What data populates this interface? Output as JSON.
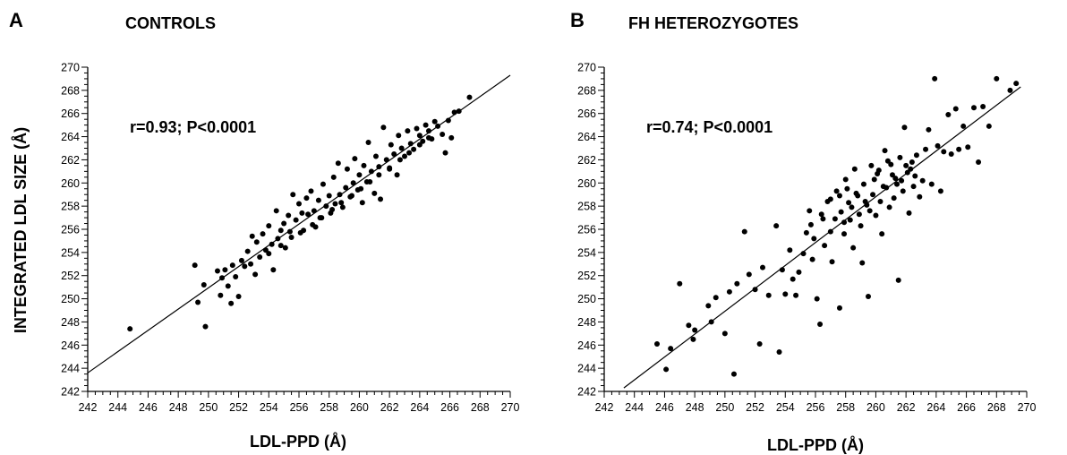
{
  "y_axis_title": "INTEGRATED LDL SIZE (Å)",
  "chart_data": [
    {
      "type": "scatter",
      "panel_label": "A",
      "title": "CONTROLS",
      "xlabel": "LDL-PPD (Å)",
      "ylabel": "INTEGRATED LDL SIZE (Å)",
      "xlim": [
        242,
        270
      ],
      "ylim": [
        242,
        270
      ],
      "x_ticks": [
        242,
        244,
        246,
        248,
        250,
        252,
        254,
        256,
        258,
        260,
        262,
        264,
        266,
        268,
        270
      ],
      "y_ticks": [
        242,
        244,
        246,
        248,
        250,
        252,
        254,
        256,
        258,
        260,
        262,
        264,
        266,
        268,
        270
      ],
      "annotation": "r=0.93; P<0.0001",
      "grid": false,
      "fit_line": {
        "x": [
          242,
          270
        ],
        "y": [
          243.6,
          269.3
        ]
      },
      "points": [
        [
          244.8,
          247.4
        ],
        [
          249.1,
          252.9
        ],
        [
          249.3,
          249.7
        ],
        [
          249.7,
          251.2
        ],
        [
          249.8,
          247.6
        ],
        [
          250.6,
          252.4
        ],
        [
          250.8,
          250.3
        ],
        [
          250.9,
          251.8
        ],
        [
          251.1,
          252.5
        ],
        [
          251.3,
          251.1
        ],
        [
          251.5,
          249.6
        ],
        [
          251.6,
          252.9
        ],
        [
          251.8,
          251.9
        ],
        [
          252.0,
          250.2
        ],
        [
          252.2,
          253.3
        ],
        [
          252.4,
          252.8
        ],
        [
          252.6,
          254.1
        ],
        [
          252.8,
          253.0
        ],
        [
          252.9,
          255.4
        ],
        [
          253.1,
          252.1
        ],
        [
          253.2,
          254.9
        ],
        [
          253.4,
          253.6
        ],
        [
          253.6,
          255.6
        ],
        [
          253.8,
          254.2
        ],
        [
          254.0,
          256.3
        ],
        [
          254.2,
          254.7
        ],
        [
          254.3,
          252.5
        ],
        [
          254.5,
          257.6
        ],
        [
          254.6,
          255.2
        ],
        [
          254.8,
          255.9
        ],
        [
          255.0,
          256.5
        ],
        [
          255.1,
          254.4
        ],
        [
          255.3,
          257.2
        ],
        [
          255.4,
          255.8
        ],
        [
          255.6,
          259.0
        ],
        [
          255.8,
          256.8
        ],
        [
          256.0,
          258.2
        ],
        [
          256.2,
          257.4
        ],
        [
          256.3,
          255.9
        ],
        [
          256.5,
          258.7
        ],
        [
          256.6,
          257.3
        ],
        [
          256.8,
          259.3
        ],
        [
          257.0,
          257.6
        ],
        [
          257.1,
          256.2
        ],
        [
          257.3,
          258.5
        ],
        [
          257.4,
          257.0
        ],
        [
          257.6,
          259.9
        ],
        [
          257.8,
          258.0
        ],
        [
          258.0,
          258.9
        ],
        [
          258.1,
          257.4
        ],
        [
          258.3,
          260.5
        ],
        [
          258.4,
          258.2
        ],
        [
          258.6,
          261.7
        ],
        [
          258.7,
          259.0
        ],
        [
          258.9,
          257.9
        ],
        [
          259.1,
          259.6
        ],
        [
          259.2,
          261.2
        ],
        [
          259.4,
          258.8
        ],
        [
          259.6,
          260.0
        ],
        [
          259.7,
          262.1
        ],
        [
          259.9,
          259.4
        ],
        [
          260.0,
          260.7
        ],
        [
          260.2,
          258.3
        ],
        [
          260.3,
          261.5
        ],
        [
          260.5,
          260.1
        ],
        [
          260.6,
          263.5
        ],
        [
          260.8,
          261.0
        ],
        [
          261.0,
          259.1
        ],
        [
          261.1,
          262.3
        ],
        [
          261.3,
          261.4
        ],
        [
          261.4,
          258.6
        ],
        [
          261.6,
          264.8
        ],
        [
          261.8,
          262.0
        ],
        [
          262.0,
          261.2
        ],
        [
          262.1,
          263.3
        ],
        [
          262.3,
          262.5
        ],
        [
          262.5,
          260.7
        ],
        [
          262.6,
          264.1
        ],
        [
          262.8,
          263.0
        ],
        [
          263.0,
          262.3
        ],
        [
          263.2,
          264.5
        ],
        [
          263.4,
          263.4
        ],
        [
          263.6,
          262.9
        ],
        [
          263.8,
          264.7
        ],
        [
          264.0,
          264.1
        ],
        [
          264.2,
          263.6
        ],
        [
          264.4,
          265.0
        ],
        [
          264.6,
          264.5
        ],
        [
          264.8,
          263.8
        ],
        [
          265.0,
          265.3
        ],
        [
          265.2,
          264.9
        ],
        [
          265.5,
          264.2
        ],
        [
          265.7,
          262.6
        ],
        [
          265.9,
          265.4
        ],
        [
          266.1,
          263.9
        ],
        [
          266.3,
          266.1
        ],
        [
          266.6,
          266.2
        ],
        [
          267.3,
          267.4
        ],
        [
          254.0,
          253.9
        ],
        [
          254.8,
          254.6
        ],
        [
          255.5,
          255.3
        ],
        [
          256.1,
          255.7
        ],
        [
          256.9,
          256.4
        ],
        [
          257.5,
          257.0
        ],
        [
          258.2,
          257.7
        ],
        [
          258.8,
          258.3
        ],
        [
          259.5,
          258.9
        ],
        [
          260.1,
          259.5
        ],
        [
          260.7,
          260.1
        ],
        [
          261.3,
          260.7
        ],
        [
          262.0,
          261.3
        ],
        [
          262.7,
          262.0
        ],
        [
          263.3,
          262.6
        ],
        [
          264.0,
          263.3
        ],
        [
          264.6,
          263.9
        ]
      ]
    },
    {
      "type": "scatter",
      "panel_label": "B",
      "title": "FH HETEROZYGOTES",
      "xlabel": "LDL-PPD (Å)",
      "ylabel": "",
      "xlim": [
        242,
        270
      ],
      "ylim": [
        242,
        270
      ],
      "x_ticks": [
        242,
        244,
        246,
        248,
        250,
        252,
        254,
        256,
        258,
        260,
        262,
        264,
        266,
        268,
        270
      ],
      "y_ticks": [
        242,
        244,
        246,
        248,
        250,
        252,
        254,
        256,
        258,
        260,
        262,
        264,
        266,
        268,
        270
      ],
      "annotation": "r=0.74; P<0.0001",
      "grid": false,
      "fit_line": {
        "x": [
          243.3,
          269.6
        ],
        "y": [
          242.3,
          268.3
        ]
      },
      "points": [
        [
          245.5,
          246.1
        ],
        [
          246.1,
          243.9
        ],
        [
          246.4,
          245.7
        ],
        [
          247.0,
          251.3
        ],
        [
          247.6,
          247.7
        ],
        [
          247.9,
          246.5
        ],
        [
          248.0,
          247.3
        ],
        [
          248.9,
          249.4
        ],
        [
          249.1,
          248.0
        ],
        [
          249.4,
          250.1
        ],
        [
          250.0,
          247.0
        ],
        [
          250.3,
          250.6
        ],
        [
          250.6,
          243.5
        ],
        [
          250.8,
          251.3
        ],
        [
          251.3,
          255.8
        ],
        [
          251.6,
          252.1
        ],
        [
          252.0,
          250.8
        ],
        [
          252.3,
          246.1
        ],
        [
          252.5,
          252.7
        ],
        [
          252.9,
          250.3
        ],
        [
          253.4,
          256.3
        ],
        [
          253.6,
          245.4
        ],
        [
          253.8,
          252.5
        ],
        [
          254.0,
          250.4
        ],
        [
          254.3,
          254.2
        ],
        [
          254.5,
          251.7
        ],
        [
          254.7,
          250.3
        ],
        [
          254.9,
          252.3
        ],
        [
          255.2,
          253.9
        ],
        [
          255.4,
          255.7
        ],
        [
          255.6,
          257.6
        ],
        [
          255.8,
          253.4
        ],
        [
          255.9,
          255.2
        ],
        [
          256.1,
          250.0
        ],
        [
          256.3,
          247.8
        ],
        [
          256.5,
          256.9
        ],
        [
          256.6,
          254.6
        ],
        [
          256.8,
          258.4
        ],
        [
          257.0,
          255.8
        ],
        [
          257.1,
          253.2
        ],
        [
          257.3,
          256.9
        ],
        [
          257.4,
          259.3
        ],
        [
          257.6,
          249.2
        ],
        [
          257.7,
          257.5
        ],
        [
          257.9,
          255.6
        ],
        [
          258.0,
          260.3
        ],
        [
          258.2,
          258.3
        ],
        [
          258.3,
          256.8
        ],
        [
          258.5,
          254.4
        ],
        [
          258.6,
          261.2
        ],
        [
          258.8,
          258.9
        ],
        [
          258.9,
          257.3
        ],
        [
          259.1,
          253.1
        ],
        [
          259.2,
          259.9
        ],
        [
          259.4,
          258.1
        ],
        [
          259.5,
          250.2
        ],
        [
          259.7,
          261.5
        ],
        [
          259.8,
          259.0
        ],
        [
          260.0,
          257.2
        ],
        [
          260.1,
          260.8
        ],
        [
          260.3,
          258.4
        ],
        [
          260.4,
          255.6
        ],
        [
          260.6,
          262.8
        ],
        [
          260.7,
          259.6
        ],
        [
          260.9,
          257.9
        ],
        [
          261.0,
          261.6
        ],
        [
          261.2,
          258.7
        ],
        [
          261.3,
          260.4
        ],
        [
          261.5,
          251.6
        ],
        [
          261.6,
          262.2
        ],
        [
          261.8,
          259.3
        ],
        [
          261.9,
          264.8
        ],
        [
          262.1,
          260.9
        ],
        [
          262.2,
          257.4
        ],
        [
          262.4,
          261.8
        ],
        [
          262.5,
          259.7
        ],
        [
          262.7,
          262.4
        ],
        [
          262.9,
          258.8
        ],
        [
          263.1,
          260.2
        ],
        [
          263.3,
          262.9
        ],
        [
          263.5,
          264.6
        ],
        [
          263.7,
          259.9
        ],
        [
          263.9,
          269.0
        ],
        [
          264.1,
          263.2
        ],
        [
          264.3,
          259.3
        ],
        [
          264.5,
          262.7
        ],
        [
          264.8,
          265.9
        ],
        [
          265.0,
          262.5
        ],
        [
          265.3,
          266.4
        ],
        [
          265.5,
          262.9
        ],
        [
          265.8,
          264.9
        ],
        [
          266.1,
          263.1
        ],
        [
          266.5,
          266.5
        ],
        [
          266.8,
          261.8
        ],
        [
          267.1,
          266.6
        ],
        [
          267.5,
          264.9
        ],
        [
          268.0,
          269.0
        ],
        [
          268.9,
          268.0
        ],
        [
          269.3,
          268.6
        ],
        [
          257.0,
          258.6
        ],
        [
          257.6,
          258.9
        ],
        [
          258.1,
          259.5
        ],
        [
          258.7,
          259.1
        ],
        [
          259.3,
          258.4
        ],
        [
          259.9,
          260.3
        ],
        [
          260.5,
          259.7
        ],
        [
          261.1,
          260.7
        ],
        [
          261.7,
          260.2
        ],
        [
          262.3,
          261.2
        ],
        [
          256.4,
          257.3
        ],
        [
          255.7,
          256.4
        ],
        [
          257.9,
          256.6
        ],
        [
          259.6,
          257.6
        ],
        [
          260.8,
          261.9
        ],
        [
          262.0,
          261.5
        ],
        [
          258.4,
          257.9
        ],
        [
          259.0,
          256.3
        ],
        [
          260.2,
          261.1
        ],
        [
          261.4,
          259.9
        ],
        [
          262.6,
          260.6
        ]
      ]
    }
  ]
}
